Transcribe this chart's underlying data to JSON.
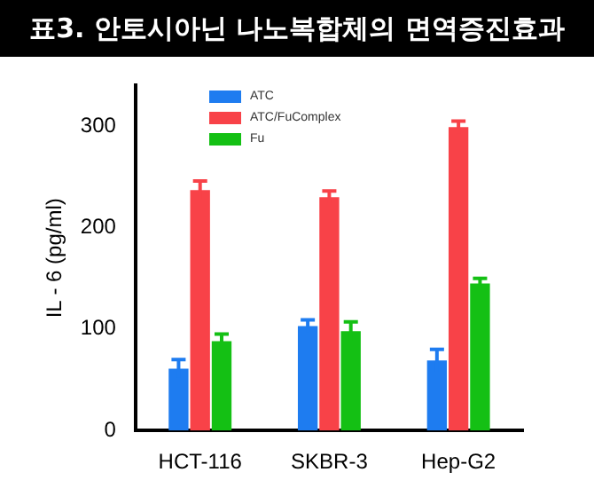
{
  "chart_data": {
    "type": "bar",
    "title": "표3. 안토시아닌 나노복합체의 면역증진효과",
    "ylabel": "IL - 6 (pg/ml)",
    "categories": [
      "HCT-116",
      "SKBR-3",
      "Hep-G2"
    ],
    "series": [
      {
        "name": "ATC",
        "color": "#1e7cf0",
        "values": [
          61,
          103,
          69
        ],
        "errors": [
          9,
          6,
          11
        ]
      },
      {
        "name": "ATC/FuComplex",
        "color": "#f84248",
        "values": [
          237,
          230,
          299
        ],
        "errors": [
          9,
          6,
          6
        ]
      },
      {
        "name": "Fu",
        "color": "#14c014",
        "values": [
          88,
          98,
          145
        ],
        "errors": [
          7,
          9,
          5
        ]
      }
    ],
    "ylim": [
      0,
      340
    ],
    "yticks": [
      0,
      100,
      200,
      300
    ],
    "grid": false,
    "legend": "top left"
  }
}
